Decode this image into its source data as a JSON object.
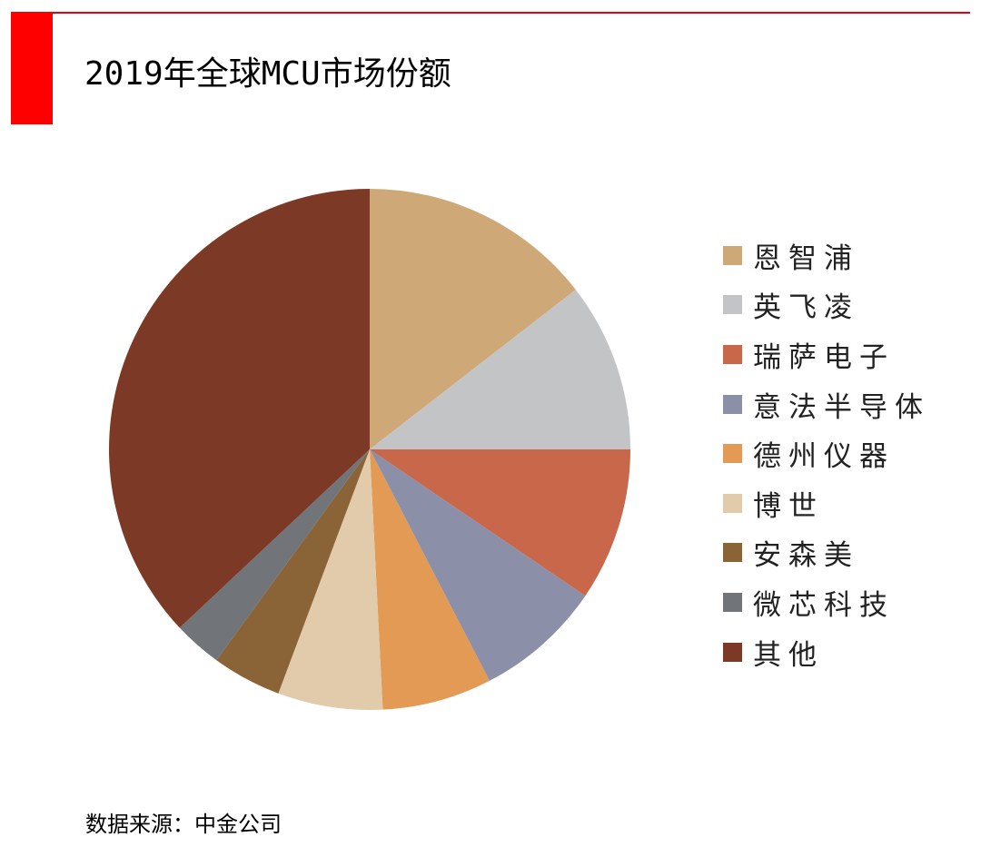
{
  "header": {
    "title": "2019年全球MCU市场份额",
    "accent_color": "#ff0000"
  },
  "chart_data": {
    "type": "pie",
    "title": "2019年全球MCU市场份额",
    "start_angle": "12 o'clock",
    "direction": "clockwise",
    "legend_position": "right",
    "slices": [
      {
        "label": "恩智浦",
        "value": 14.5,
        "color": "#cfa878"
      },
      {
        "label": "英飞凌",
        "value": 10.5,
        "color": "#c3c4c6"
      },
      {
        "label": "瑞萨电子",
        "value": 9.5,
        "color": "#c9674b"
      },
      {
        "label": "意法半导体",
        "value": 7.9,
        "color": "#8c8fa8"
      },
      {
        "label": "德州仪器",
        "value": 6.8,
        "color": "#e29a55"
      },
      {
        "label": "博世",
        "value": 6.5,
        "color": "#e1cbaa"
      },
      {
        "label": "安森美",
        "value": 4.3,
        "color": "#8a6336"
      },
      {
        "label": "微芯科技",
        "value": 3.0,
        "color": "#717478"
      },
      {
        "label": "其他",
        "value": 37.0,
        "color": "#7c3a26"
      }
    ]
  },
  "footer": {
    "source": "数据来源：中金公司"
  }
}
